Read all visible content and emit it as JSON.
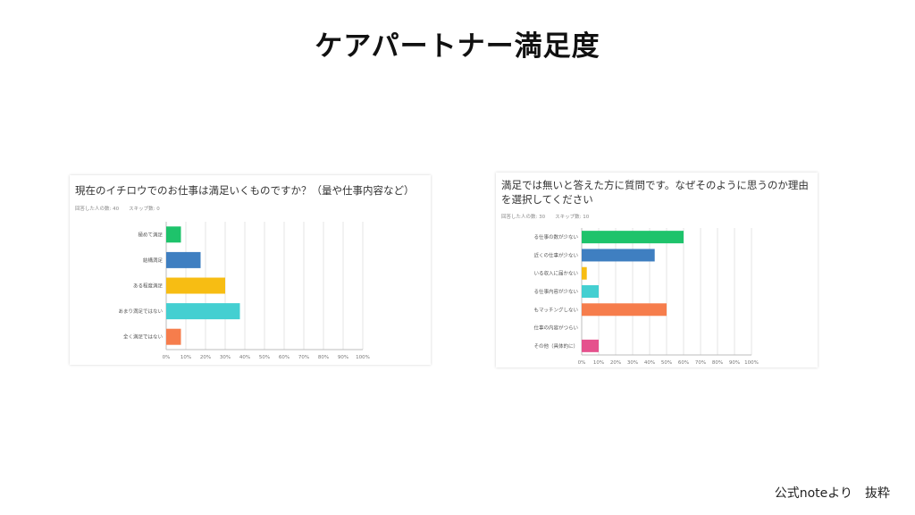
{
  "slide": {
    "title": "ケアパートナー満足度",
    "footer": "公式noteより　抜粋"
  },
  "charts": [
    {
      "question": "現在のイチロウでのお仕事は満足いくものですか？（量や仕事内容など）",
      "stats": "回答した人の数: 40　　スキップ数: 0"
    },
    {
      "question": "満足では無いと答えた方に質問です。なぜそのように思うのか理由を選択してください",
      "stats": "回答した人の数: 30　　スキップ数: 10"
    }
  ],
  "chart_data": [
    {
      "type": "bar",
      "orientation": "horizontal",
      "title": "現在のイチロウでのお仕事は満足いくものですか？（量や仕事内容など）",
      "categories": [
        "極めて満足",
        "結構満足",
        "ある程度満足",
        "あまり満足ではない",
        "全く満足ではない"
      ],
      "values": [
        7.5,
        17.5,
        30,
        37.5,
        7.5
      ],
      "colors": [
        "#1ec36b",
        "#3f7fc1",
        "#f7bd13",
        "#44cfd1",
        "#f67d4c"
      ],
      "xticks": [
        "0%",
        "10%",
        "20%",
        "30%",
        "40%",
        "50%",
        "60%",
        "70%",
        "80%",
        "90%",
        "100%"
      ],
      "xlim": [
        0,
        100
      ],
      "grid": true
    },
    {
      "type": "bar",
      "orientation": "horizontal",
      "title": "満足では無いと答えた方に質問です。なぜそのように思うのか理由を選択してください",
      "categories": [
        "る仕事の数が少ない",
        "近くの仕事が少ない",
        "いる収入に届かない",
        "る仕事内容が少ない",
        "もマッチングしない",
        "仕事の内容がつらい",
        "その他（具体的に）"
      ],
      "values": [
        60,
        43,
        3,
        10,
        50,
        0,
        10
      ],
      "colors": [
        "#1ec36b",
        "#3f7fc1",
        "#f7bd13",
        "#44cfd1",
        "#f67d4c",
        "#f0a8c4",
        "#e5528d"
      ],
      "xticks": [
        "0%",
        "10%",
        "20%",
        "30%",
        "40%",
        "50%",
        "60%",
        "70%",
        "80%",
        "90%",
        "100%"
      ],
      "xlim": [
        0,
        100
      ],
      "grid": true
    }
  ]
}
